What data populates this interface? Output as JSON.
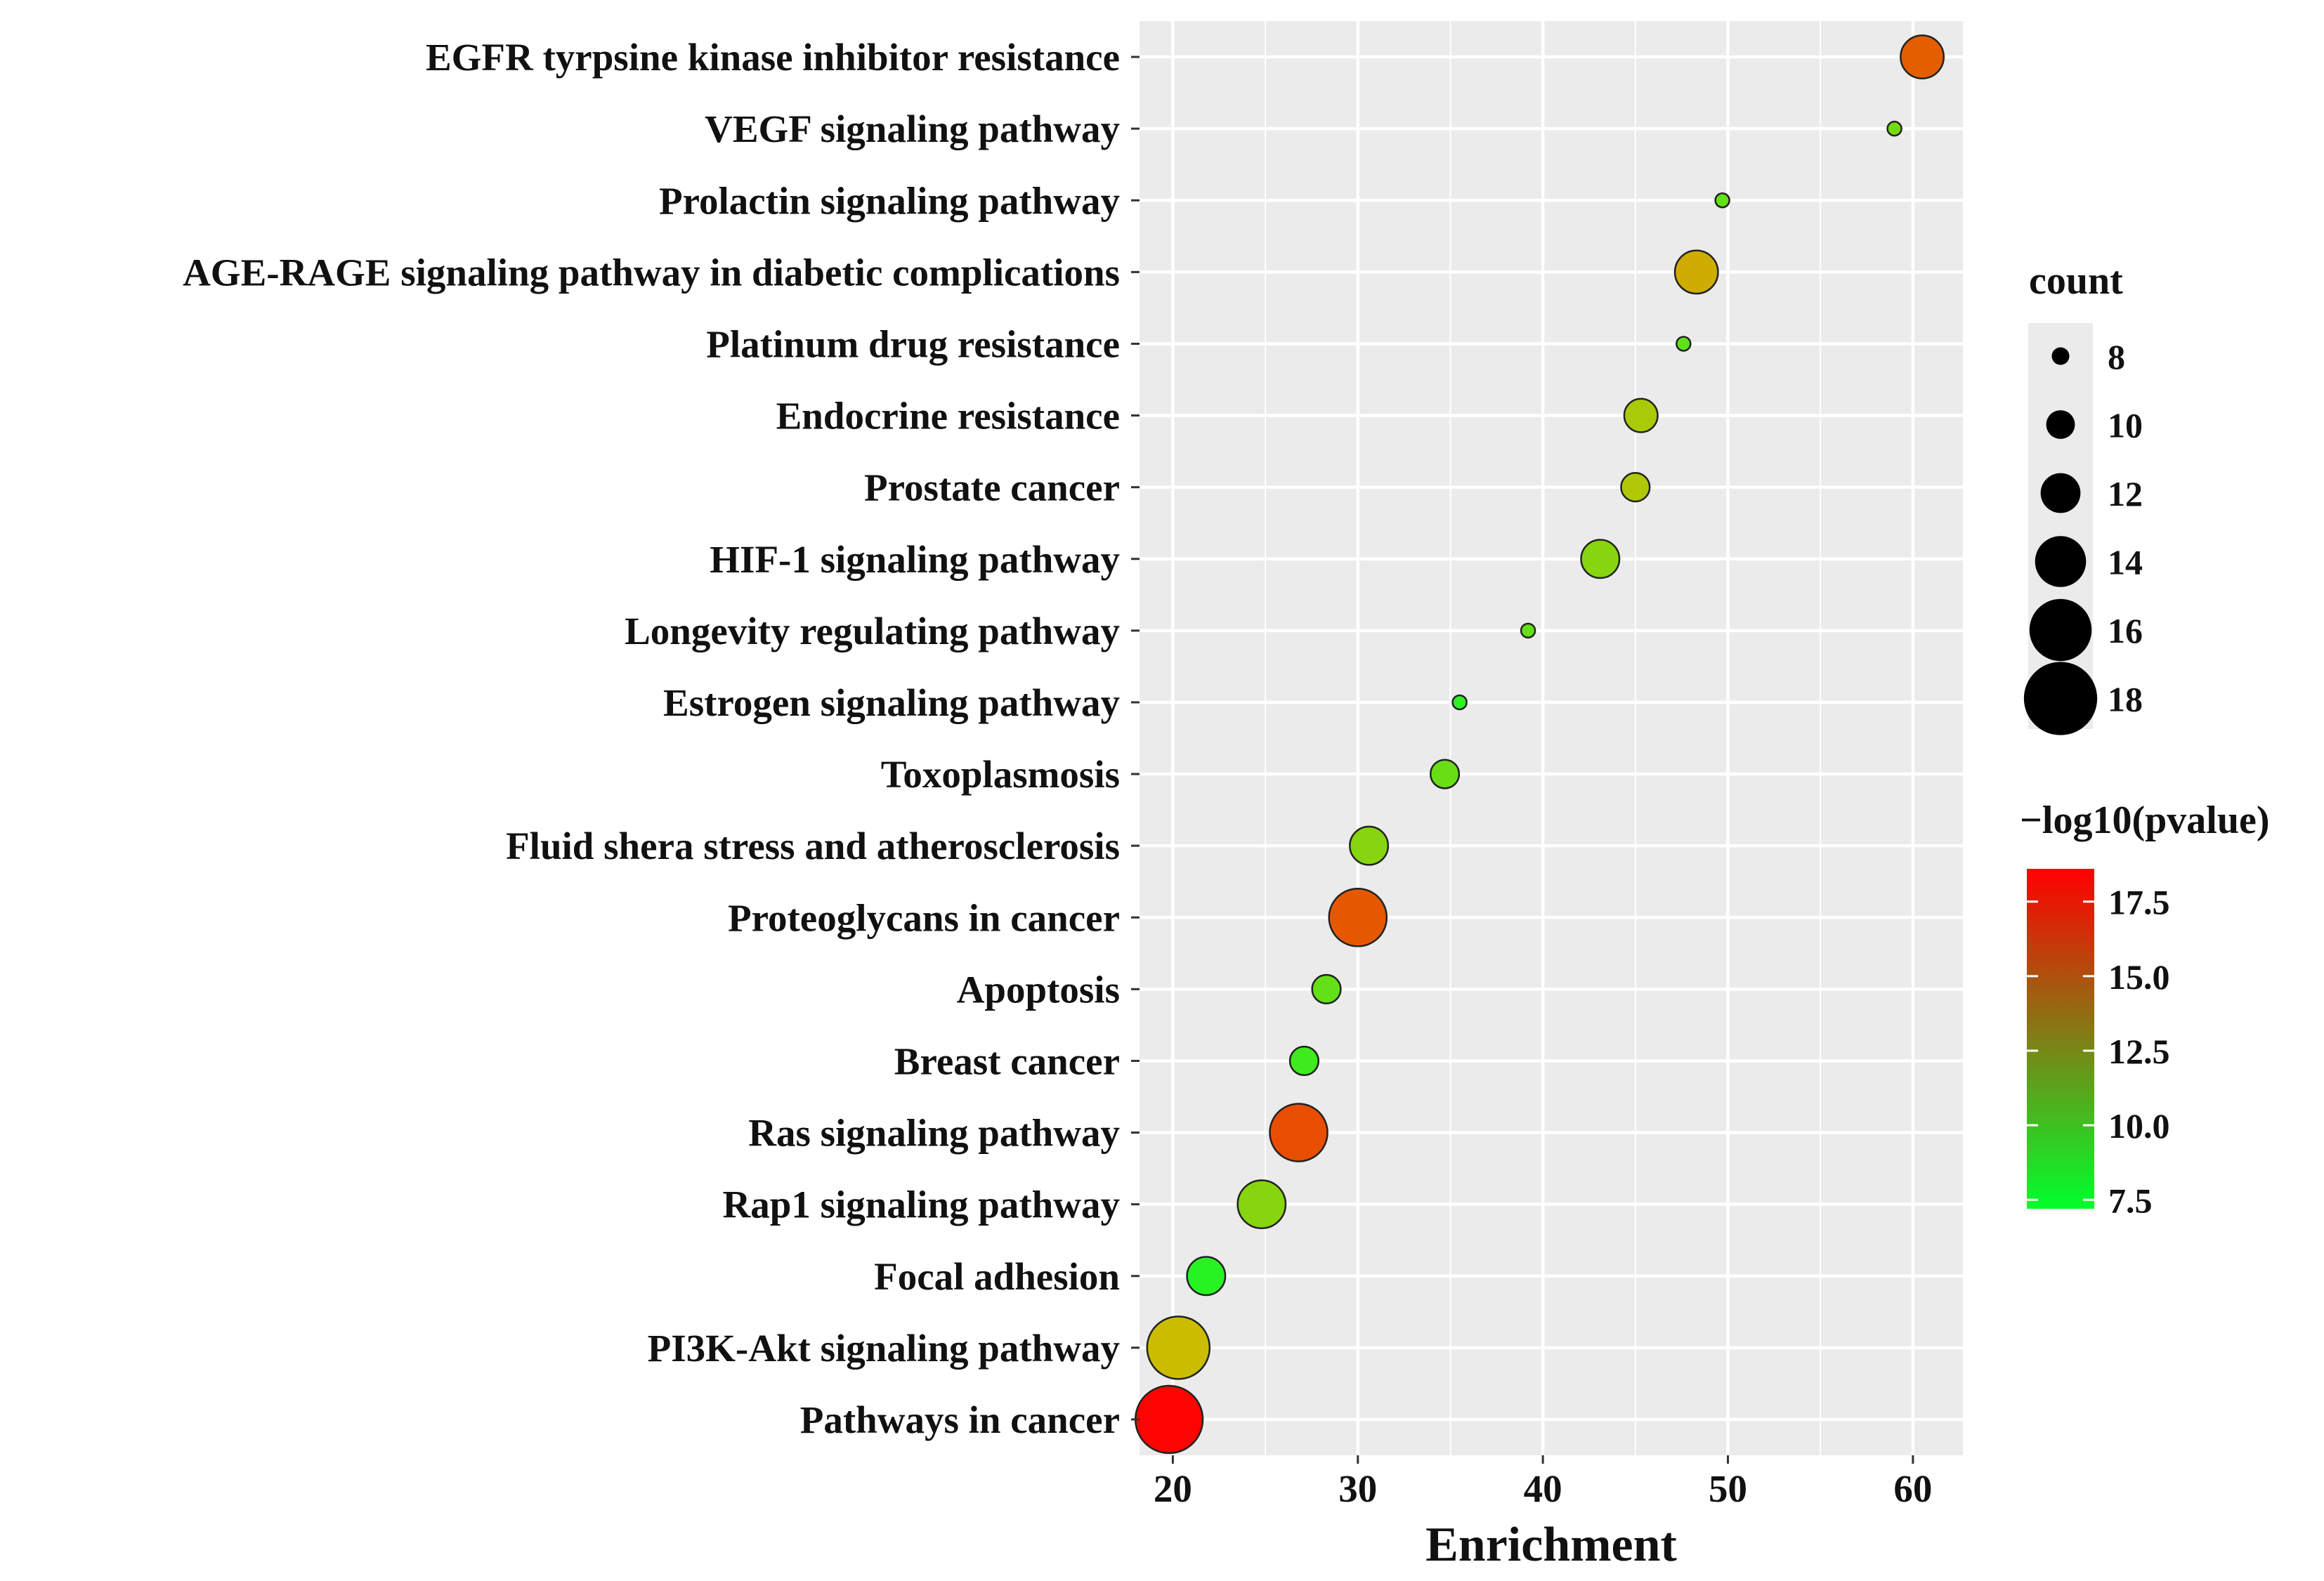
{
  "chart_data": {
    "type": "scatter",
    "title": "",
    "xlabel": "Enrichment",
    "ylabel": "",
    "xlim": [
      18.2,
      62.7
    ],
    "x_ticks": [
      20,
      30,
      40,
      50,
      60
    ],
    "grid": true,
    "points": [
      {
        "term": "EGFR tyrpsine kinase inhibitor resistance",
        "enrichment": 60.5,
        "count": 14,
        "neglog10p": 15.8
      },
      {
        "term": "VEGF signaling pathway",
        "enrichment": 59.0,
        "count": 8,
        "neglog10p": 10.5
      },
      {
        "term": "Prolactin signaling pathway",
        "enrichment": 49.7,
        "count": 8,
        "neglog10p": 10.0
      },
      {
        "term": "AGE-RAGE signaling pathway in diabetic complications",
        "enrichment": 48.3,
        "count": 14,
        "neglog10p": 13.5
      },
      {
        "term": "Platinum drug resistance",
        "enrichment": 47.6,
        "count": 8,
        "neglog10p": 9.8
      },
      {
        "term": "Endocrine resistance",
        "enrichment": 45.3,
        "count": 12,
        "neglog10p": 12.0
      },
      {
        "term": "Prostate cancer",
        "enrichment": 45.0,
        "count": 11,
        "neglog10p": 12.2
      },
      {
        "term": "HIF-1 signaling pathway",
        "enrichment": 43.1,
        "count": 13,
        "neglog10p": 11.0
      },
      {
        "term": "Longevity regulating pathway",
        "enrichment": 39.2,
        "count": 8,
        "neglog10p": 10.0
      },
      {
        "term": "Estrogen signaling pathway",
        "enrichment": 35.5,
        "count": 8,
        "neglog10p": 8.5
      },
      {
        "term": "Toxoplasmosis",
        "enrichment": 34.7,
        "count": 11,
        "neglog10p": 10.2
      },
      {
        "term": "Fluid shera stress and atherosclerosis",
        "enrichment": 30.6,
        "count": 13,
        "neglog10p": 11.0
      },
      {
        "term": "Proteoglycans in cancer",
        "enrichment": 30.0,
        "count": 17,
        "neglog10p": 16.0
      },
      {
        "term": "Apoptosis",
        "enrichment": 28.3,
        "count": 11,
        "neglog10p": 10.0
      },
      {
        "term": "Breast cancer",
        "enrichment": 27.1,
        "count": 11,
        "neglog10p": 9.0
      },
      {
        "term": "Ras signaling pathway",
        "enrichment": 26.8,
        "count": 17,
        "neglog10p": 16.3
      },
      {
        "term": "Rap1 signaling pathway",
        "enrichment": 24.8,
        "count": 15,
        "neglog10p": 11.0
      },
      {
        "term": "Focal adhesion",
        "enrichment": 21.8,
        "count": 13,
        "neglog10p": 8.3
      },
      {
        "term": "PI3K-Akt signaling pathway",
        "enrichment": 20.3,
        "count": 18,
        "neglog10p": 13.0
      },
      {
        "term": "Pathways in cancer",
        "enrichment": 19.8,
        "count": 19,
        "neglog10p": 18.5
      }
    ],
    "size_legend": {
      "title": "count",
      "values": [
        8,
        10,
        12,
        14,
        16,
        18
      ]
    },
    "color_legend": {
      "title": "−log10(pvalue)",
      "ticks": [
        17.5,
        15.0,
        12.5,
        10.0,
        7.5
      ],
      "tick_labels": [
        "17.5",
        "15.0",
        "12.5",
        "10.0",
        "7.5"
      ],
      "min": 7.2,
      "max": 18.6,
      "low_color": "#00ff2b",
      "high_color": "#ff0000"
    },
    "colors": {
      "panel_bg": "#ebebeb",
      "grid": "#ffffff",
      "point_outline": "#222222"
    }
  }
}
